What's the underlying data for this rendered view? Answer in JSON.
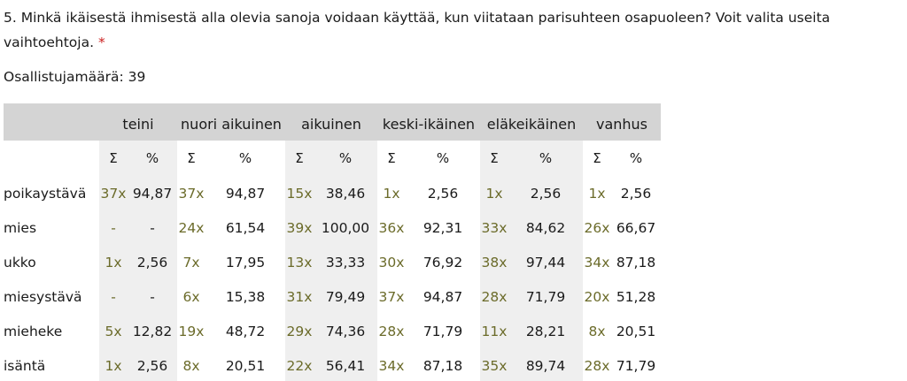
{
  "question": {
    "text": "5. Minkä ikäisestä ihmisestä alla olevia sanoja voidaan käyttää, kun viitataan parisuhteen osapuoleen? Voit valita useita vaihtoehtoja.",
    "required_mark": "*"
  },
  "participants": "Osallistujamäärä: 39",
  "table": {
    "groups": [
      "teini",
      "nuori aikuinen",
      "aikuinen",
      "keski-ikäinen",
      "eläkeikäinen",
      "vanhus"
    ],
    "sub_headers": {
      "sum": "Σ",
      "pct": "%"
    },
    "rows": [
      {
        "label": "poikaystävä",
        "cells": [
          [
            "37x",
            "94,87"
          ],
          [
            "37x",
            "94,87"
          ],
          [
            "15x",
            "38,46"
          ],
          [
            "1x",
            "2,56"
          ],
          [
            "1x",
            "2,56"
          ],
          [
            "1x",
            "2,56"
          ]
        ]
      },
      {
        "label": "mies",
        "cells": [
          [
            "-",
            "-"
          ],
          [
            "24x",
            "61,54"
          ],
          [
            "39x",
            "100,00"
          ],
          [
            "36x",
            "92,31"
          ],
          [
            "33x",
            "84,62"
          ],
          [
            "26x",
            "66,67"
          ]
        ]
      },
      {
        "label": "ukko",
        "cells": [
          [
            "1x",
            "2,56"
          ],
          [
            "7x",
            "17,95"
          ],
          [
            "13x",
            "33,33"
          ],
          [
            "30x",
            "76,92"
          ],
          [
            "38x",
            "97,44"
          ],
          [
            "34x",
            "87,18"
          ]
        ]
      },
      {
        "label": "miesystävä",
        "cells": [
          [
            "-",
            "-"
          ],
          [
            "6x",
            "15,38"
          ],
          [
            "31x",
            "79,49"
          ],
          [
            "37x",
            "94,87"
          ],
          [
            "28x",
            "71,79"
          ],
          [
            "20x",
            "51,28"
          ]
        ]
      },
      {
        "label": "mieheke",
        "cells": [
          [
            "5x",
            "12,82"
          ],
          [
            "19x",
            "48,72"
          ],
          [
            "29x",
            "74,36"
          ],
          [
            "28x",
            "71,79"
          ],
          [
            "11x",
            "28,21"
          ],
          [
            "8x",
            "20,51"
          ]
        ]
      },
      {
        "label": "isäntä",
        "cells": [
          [
            "1x",
            "2,56"
          ],
          [
            "8x",
            "20,51"
          ],
          [
            "22x",
            "56,41"
          ],
          [
            "34x",
            "87,18"
          ],
          [
            "35x",
            "89,74"
          ],
          [
            "28x",
            "71,79"
          ]
        ]
      }
    ]
  }
}
